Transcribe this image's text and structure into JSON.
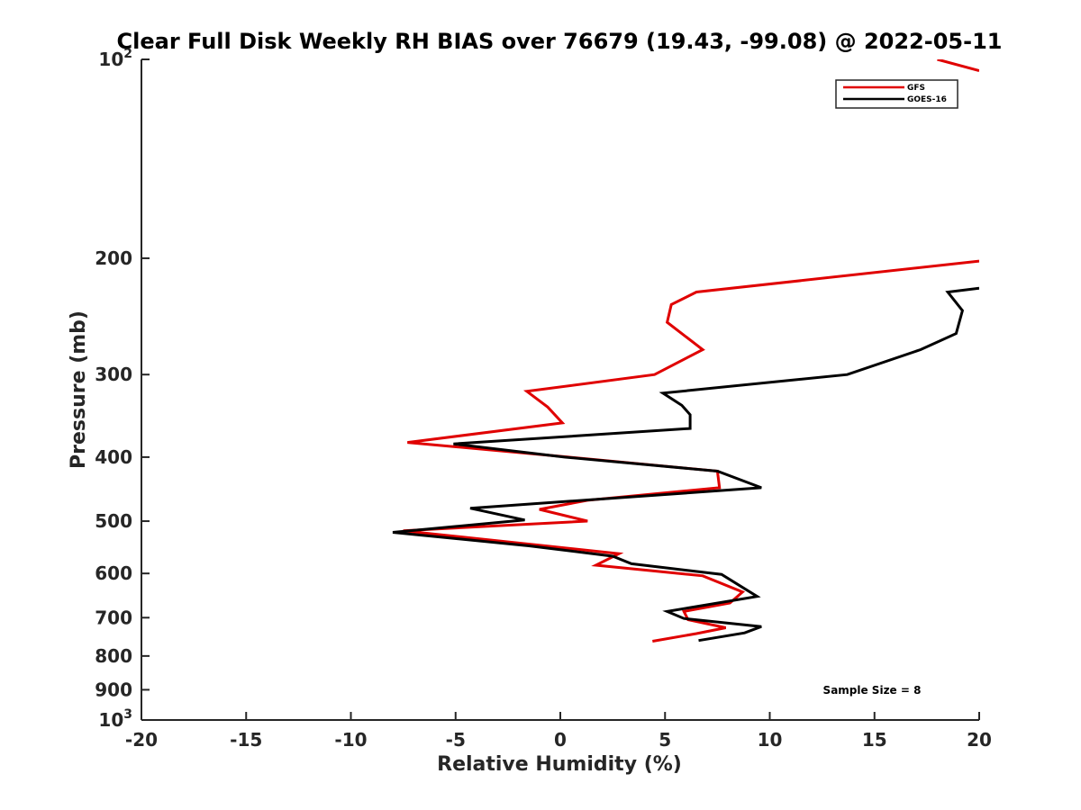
{
  "chart_data": {
    "type": "line",
    "title": "Clear Full Disk Weekly RH BIAS over 76679 (19.43, -99.08) @ 2022-05-11",
    "xlabel": "Relative Humidity (%)",
    "ylabel": "Pressure (mb)",
    "xlim": [
      -20,
      20
    ],
    "ylim": [
      100,
      1000
    ],
    "yscale": "log",
    "y_reversed": true,
    "xticks": [
      -20,
      -15,
      -10,
      -5,
      0,
      5,
      10,
      15,
      20
    ],
    "xtick_labels": [
      "-20",
      "-15",
      "-10",
      "-5",
      "0",
      "5",
      "10",
      "15",
      "20"
    ],
    "yticks": [
      100,
      200,
      300,
      400,
      500,
      600,
      700,
      800,
      900,
      1000
    ],
    "ytick_labels": [
      {
        "base": "10",
        "exp": "2"
      },
      {
        "base": "200",
        "exp": ""
      },
      {
        "base": "300",
        "exp": ""
      },
      {
        "base": "400",
        "exp": ""
      },
      {
        "base": "500",
        "exp": ""
      },
      {
        "base": "600",
        "exp": ""
      },
      {
        "base": "700",
        "exp": ""
      },
      {
        "base": "800",
        "exp": ""
      },
      {
        "base": "900",
        "exp": ""
      },
      {
        "base": "10",
        "exp": "3"
      }
    ],
    "grid": false,
    "legend_position": "top-right",
    "annotation": "Sample Size = 8",
    "series": [
      {
        "name": "GFS",
        "color": "#e00000",
        "segments": [
          [
            [
              18,
              100
            ],
            [
              20,
              104
            ]
          ],
          [
            [
              20,
              202
            ],
            [
              6.5,
              225
            ],
            [
              5.3,
              235
            ],
            [
              5.1,
              250
            ],
            [
              6.8,
              275
            ],
            [
              4.5,
              300
            ],
            [
              -1.6,
              318
            ],
            [
              -0.6,
              336
            ],
            [
              0.1,
              355
            ],
            [
              -7.3,
              380
            ],
            [
              0.4,
              400
            ],
            [
              7.5,
              420
            ],
            [
              7.6,
              445
            ],
            [
              1.3,
              465
            ],
            [
              -1,
              480
            ],
            [
              1.3,
              500
            ],
            [
              -7.5,
              517
            ],
            [
              2.8,
              560
            ],
            [
              1.7,
              583
            ],
            [
              6.8,
              605
            ],
            [
              8.7,
              640
            ],
            [
              8.1,
              665
            ],
            [
              5.9,
              685
            ],
            [
              6.1,
              705
            ],
            [
              7.9,
              725
            ],
            [
              6.5,
              740
            ],
            [
              4.4,
              760
            ]
          ]
        ]
      },
      {
        "name": "GOES-16",
        "color": "#000000",
        "segments": [
          [
            [
              20,
              222
            ],
            [
              18.5,
              225
            ],
            [
              19.2,
              240
            ],
            [
              18.9,
              260
            ],
            [
              17.2,
              275
            ],
            [
              13.7,
              300
            ],
            [
              4.9,
              320
            ],
            [
              5.8,
              334
            ],
            [
              6.2,
              345
            ],
            [
              6.2,
              362
            ],
            [
              -5.1,
              382
            ],
            [
              0.2,
              400
            ],
            [
              7.5,
              420
            ],
            [
              9.6,
              445
            ],
            [
              -4.3,
              478
            ],
            [
              -1.7,
              498
            ],
            [
              -8,
              520
            ],
            [
              -1.5,
              545
            ],
            [
              2.5,
              565
            ],
            [
              3.4,
              580
            ],
            [
              7.7,
              602
            ],
            [
              9.4,
              650
            ],
            [
              5.1,
              685
            ],
            [
              5.9,
              702
            ],
            [
              9.6,
              722
            ],
            [
              8.8,
              738
            ],
            [
              6.6,
              758
            ]
          ]
        ]
      }
    ]
  }
}
